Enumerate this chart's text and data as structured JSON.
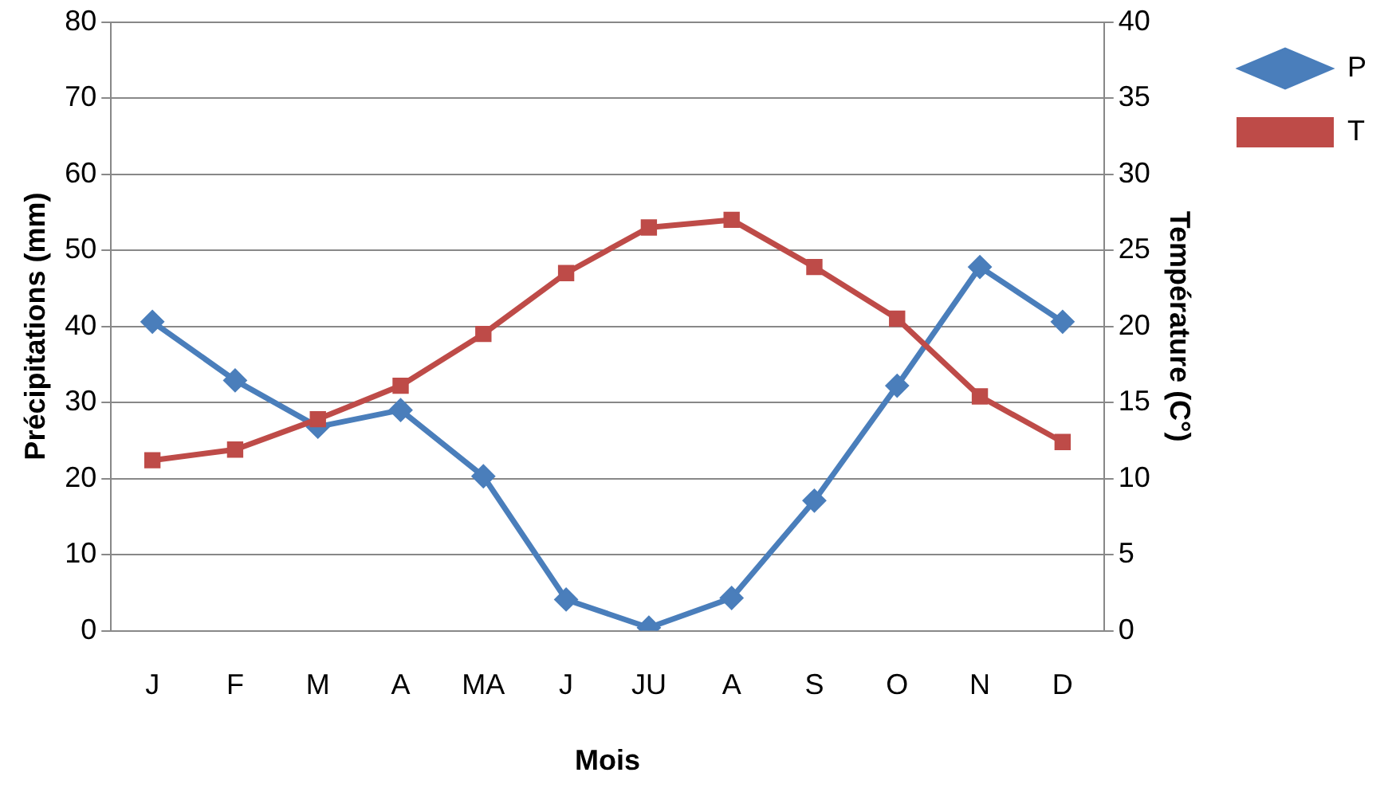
{
  "chart_data": {
    "type": "line",
    "xlabel": "Mois",
    "ylabel": "Précipitations (mm)",
    "y2label": "Température (C°)",
    "categories": [
      "J",
      "F",
      "M",
      "A",
      "MA",
      "J",
      "JU",
      "A",
      "S",
      "O",
      "N",
      "D"
    ],
    "series": [
      {
        "name": "P",
        "color": "#4a7ebb",
        "marker": "diamond",
        "values": [
          40.6,
          32.9,
          26.8,
          29.0,
          20.3,
          4.1,
          0.4,
          4.3,
          17.1,
          32.2,
          47.8,
          40.6
        ]
      },
      {
        "name": "T",
        "color": "#be4b48",
        "marker": "square",
        "axis": "y2",
        "values": [
          11.2,
          11.9,
          13.9,
          16.1,
          19.5,
          23.5,
          26.5,
          27.0,
          23.9,
          20.5,
          15.4,
          12.4
        ]
      }
    ],
    "ylim": [
      0,
      80
    ],
    "yticks": [
      0,
      10,
      20,
      30,
      40,
      50,
      60,
      70,
      80
    ],
    "y2lim": [
      0,
      40
    ],
    "y2ticks": [
      0,
      5,
      10,
      15,
      20,
      25,
      30,
      35,
      40
    ],
    "grid": "y",
    "legend": "top right",
    "line_style": "solid"
  }
}
